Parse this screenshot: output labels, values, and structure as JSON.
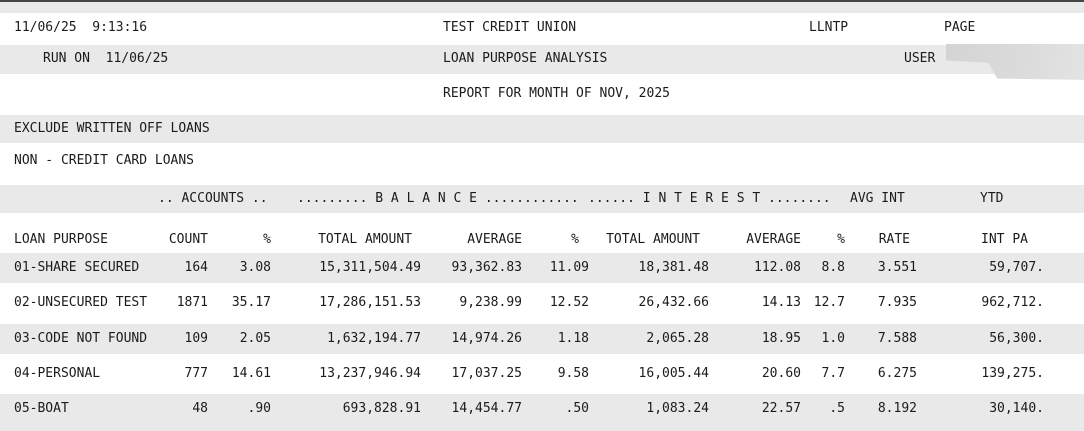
{
  "page_header": {
    "datetime": "11/06/25  9:13:16",
    "org_name": "TEST CREDIT UNION",
    "report_code": "LLNTP",
    "page_label": "PAGE",
    "run_on": "RUN ON  11/06/25",
    "report_title": "LOAN PURPOSE ANALYSIS",
    "user_label": "USER",
    "report_period": "REPORT FOR MONTH OF NOV, 2025"
  },
  "filters": {
    "exclude_note": "EXCLUDE WRITTEN OFF LOANS",
    "section_title": "NON - CREDIT CARD LOANS"
  },
  "table": {
    "group_header": {
      "accounts": ".. ACCOUNTS ..",
      "balance": "......... B A L A N C E ............",
      "interest": "...... I N T E R E S T ........",
      "avg_int": "AVG INT",
      "ytd": "YTD"
    },
    "columns": [
      "LOAN PURPOSE",
      "COUNT",
      "%",
      "TOTAL AMOUNT",
      "AVERAGE",
      "%",
      "TOTAL AMOUNT",
      "AVERAGE",
      "%",
      "RATE",
      "INT PA"
    ],
    "rows": [
      [
        "01-SHARE SECURED",
        "164",
        "3.08",
        "15,311,504.49",
        "93,362.83",
        "11.09",
        "18,381.48",
        "112.08",
        "8.8",
        "3.551",
        "59,707."
      ],
      [
        "02-UNSECURED TEST",
        "1871",
        "35.17",
        "17,286,151.53",
        "9,238.99",
        "12.52",
        "26,432.66",
        "14.13",
        "12.7",
        "7.935",
        "962,712."
      ],
      [
        "03-CODE NOT FOUND",
        "109",
        "2.05",
        "1,632,194.77",
        "14,974.26",
        "1.18",
        "2,065.28",
        "18.95",
        "1.0",
        "7.588",
        "56,300."
      ],
      [
        "04-PERSONAL",
        "777",
        "14.61",
        "13,237,946.94",
        "17,037.25",
        "9.58",
        "16,005.44",
        "20.60",
        "7.7",
        "6.275",
        "139,275."
      ],
      [
        "05-BOAT",
        "48",
        ".90",
        "693,828.91",
        "14,454.77",
        ".50",
        "1,083.24",
        "22.57",
        ".5",
        "8.192",
        "30,140."
      ]
    ]
  },
  "colors": {
    "band_gray": "#e9e9e9",
    "text": "#1b1b1b",
    "top_border": "#454545",
    "redaction_gray": "#d8d8d8"
  }
}
